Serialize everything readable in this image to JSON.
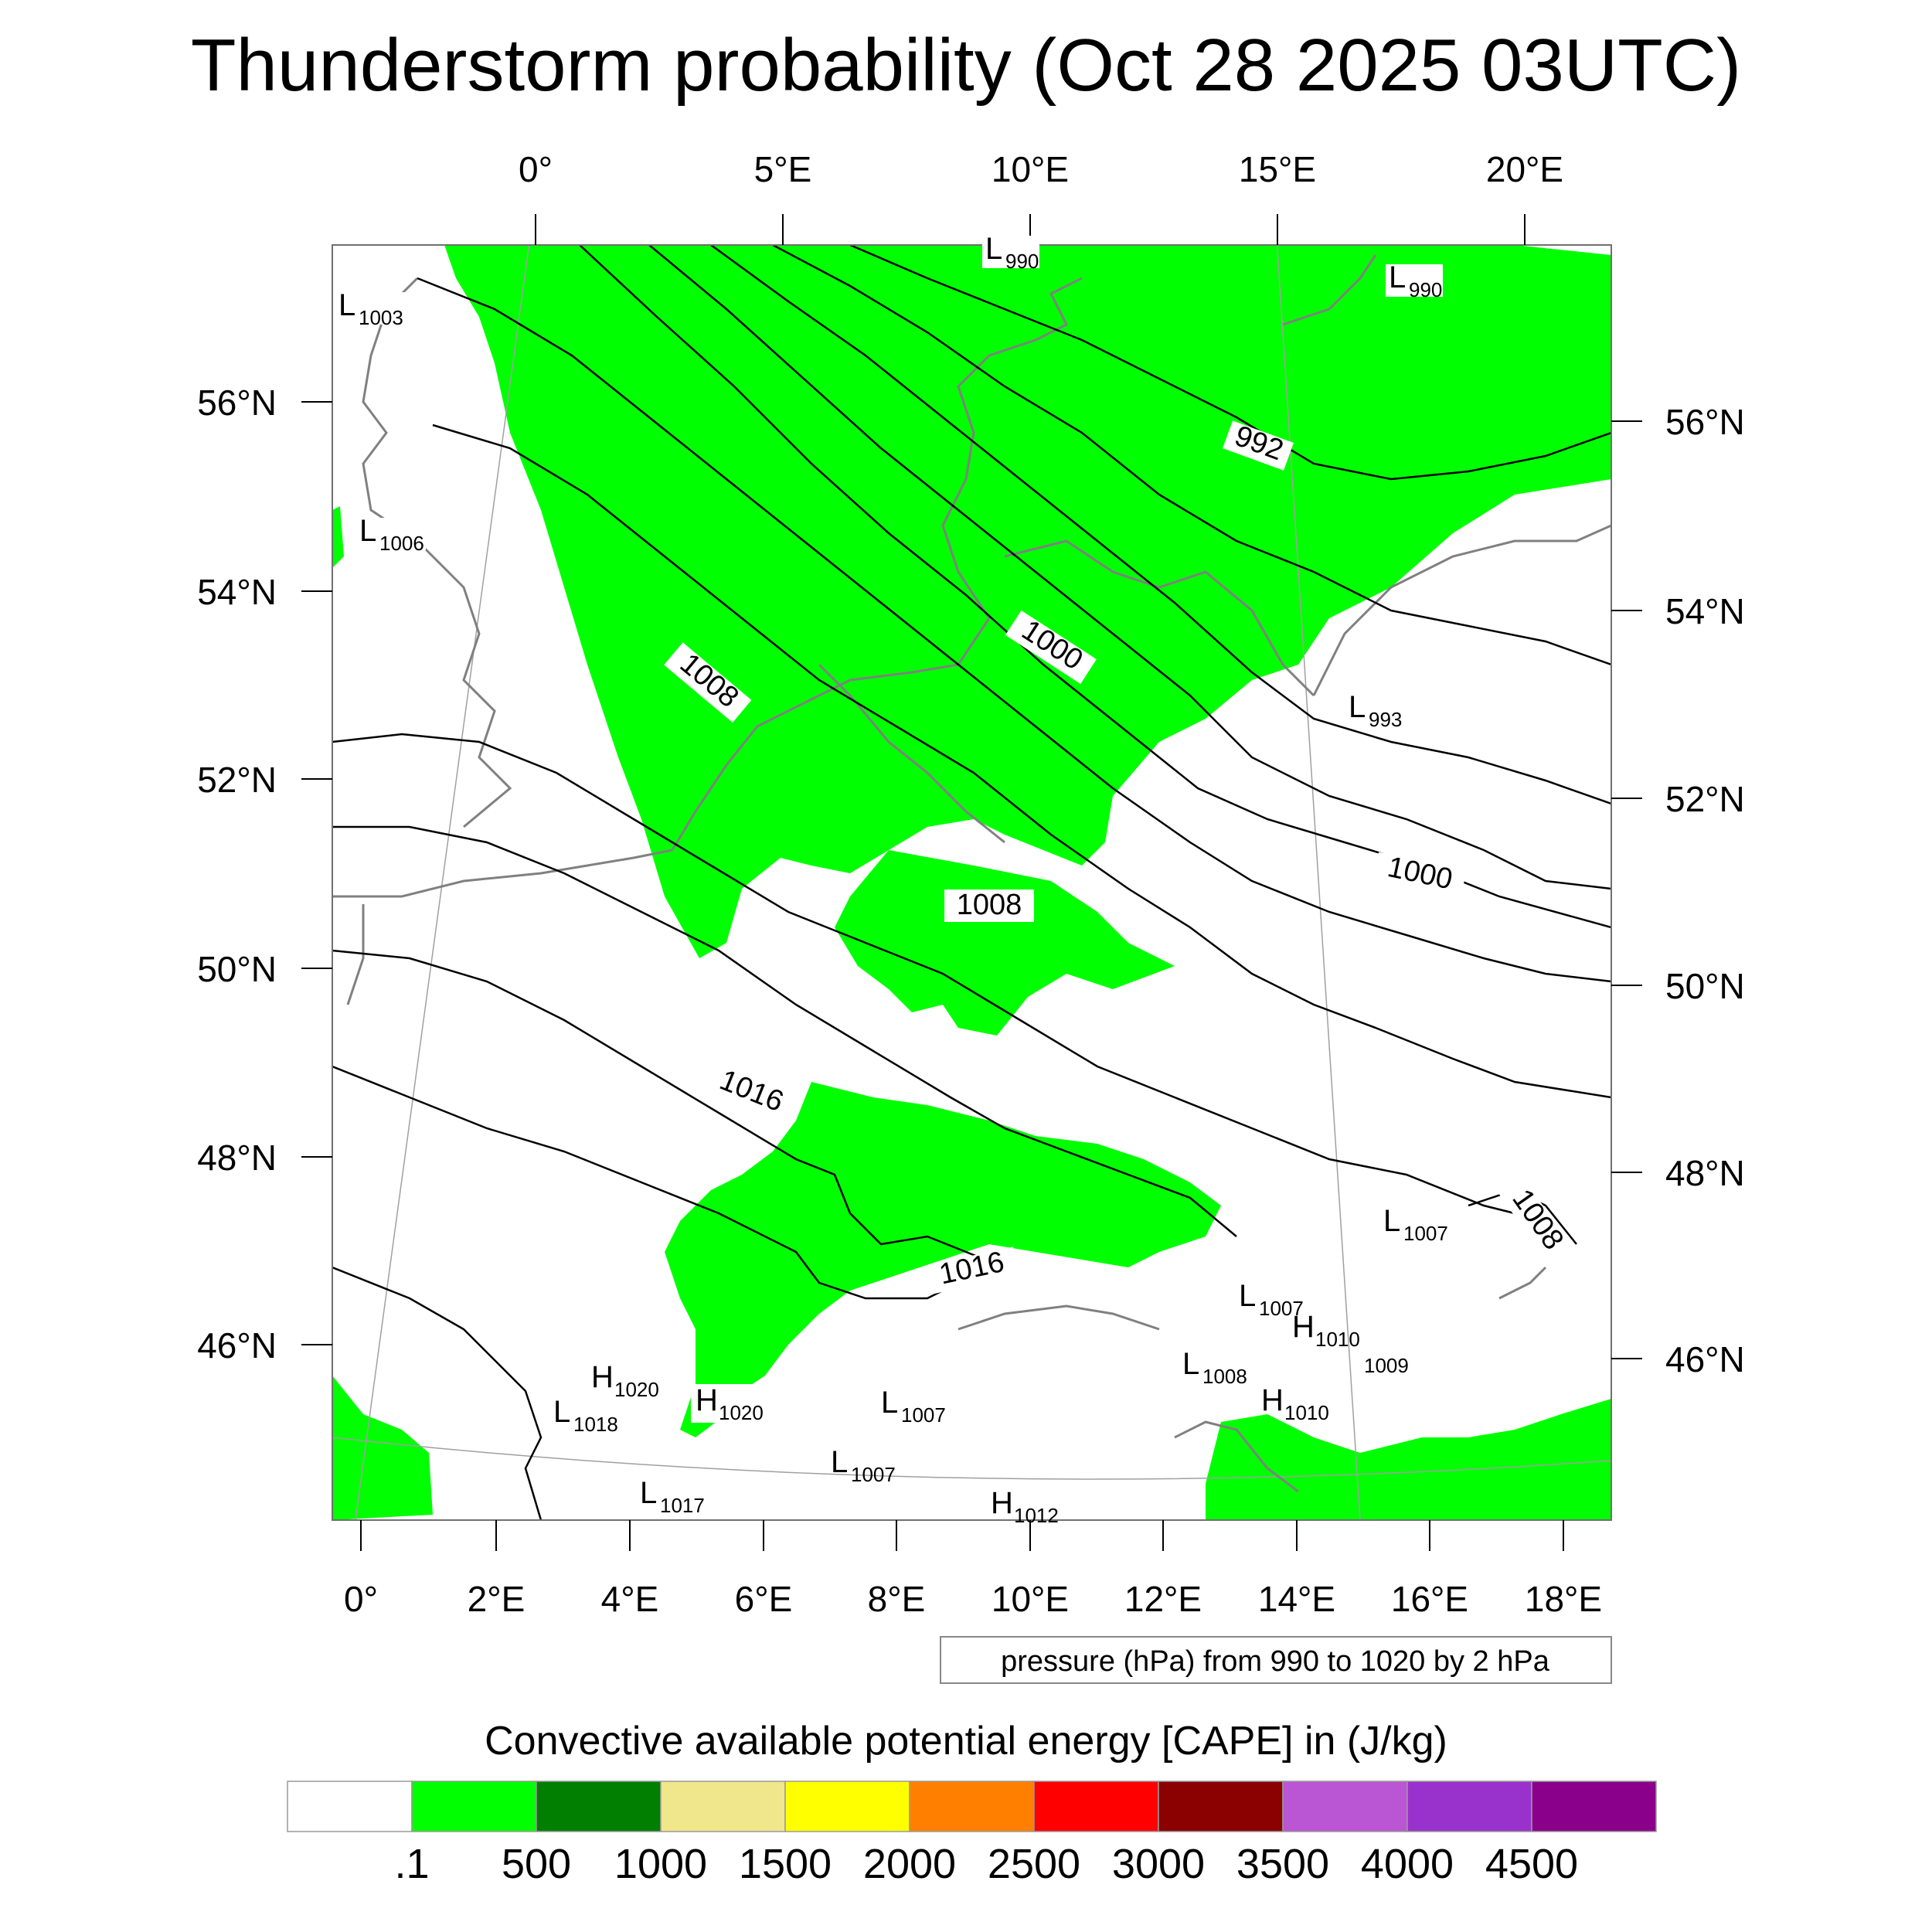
{
  "title": "Thunderstorm probability (Oct 28 2025 03UTC)",
  "map": {
    "top_lon_labels": [
      "0°",
      "5°E",
      "10°E",
      "15°E",
      "20°E"
    ],
    "bottom_lon_labels": [
      "0°",
      "2°E",
      "4°E",
      "6°E",
      "8°E",
      "10°E",
      "12°E",
      "14°E",
      "16°E",
      "18°E"
    ],
    "left_lat_labels": [
      "56°N",
      "54°N",
      "52°N",
      "50°N",
      "48°N",
      "46°N"
    ],
    "right_lat_labels": [
      "56°N",
      "54°N",
      "52°N",
      "50°N",
      "48°N",
      "46°N"
    ],
    "contour_labels": [
      "992",
      "1000",
      "1008",
      "1000",
      "1008",
      "1016",
      "1016",
      "1008"
    ],
    "pressure_centers": [
      {
        "type": "L",
        "value": "990"
      },
      {
        "type": "L",
        "value": "990"
      },
      {
        "type": "L",
        "value": "1003"
      },
      {
        "type": "L",
        "value": "1006"
      },
      {
        "type": "L",
        "value": "993"
      },
      {
        "type": "L",
        "value": "1007"
      },
      {
        "type": "L",
        "value": "1007"
      },
      {
        "type": "H",
        "value": "1010"
      },
      {
        "type": "",
        "value": "1009"
      },
      {
        "type": "L",
        "value": "1008"
      },
      {
        "type": "H",
        "value": "1010"
      },
      {
        "type": "H",
        "value": "1020"
      },
      {
        "type": "L",
        "value": "1018"
      },
      {
        "type": "H",
        "value": "1020"
      },
      {
        "type": "L",
        "value": "1007"
      },
      {
        "type": "L",
        "value": "1007"
      },
      {
        "type": "L",
        "value": "1017"
      },
      {
        "type": "H",
        "value": "1012"
      }
    ],
    "colors": {
      "land_outline": "#808080",
      "contour": "#000000",
      "cape_fill": "#00ff00"
    }
  },
  "pressure_note": "pressure (hPa) from 990 to 1020 by 2 hPa",
  "colorbar": {
    "title": "Convective available potential energy [CAPE] in (J/kg)",
    "colors": [
      "#ffffff",
      "#00ff00",
      "#007f00",
      "#f0e68c",
      "#ffff00",
      "#ff8000",
      "#ff0000",
      "#8b0000",
      "#ba55d3",
      "#9932cc",
      "#8b008b"
    ],
    "labels": [
      ".1",
      "500",
      "1000",
      "1500",
      "2000",
      "2500",
      "3000",
      "3500",
      "4000",
      "4500"
    ]
  }
}
